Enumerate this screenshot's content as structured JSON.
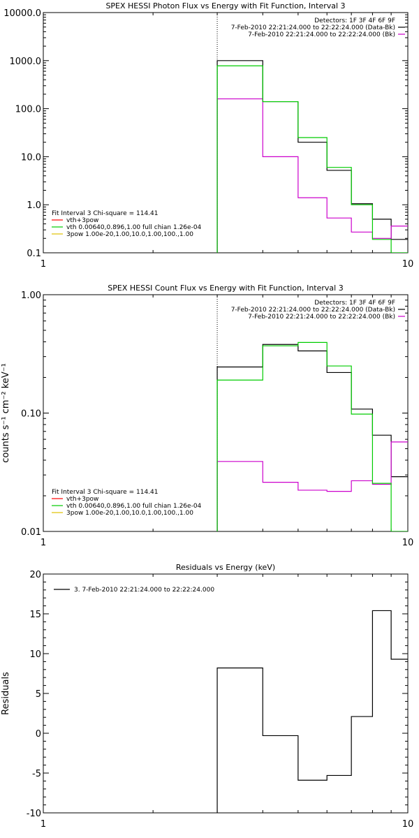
{
  "chart_data": [
    {
      "type": "line",
      "title": "SPEX HESSI Photon Flux vs Energy with Fit Function, Interval 3",
      "xscale": "log",
      "yscale": "log",
      "xlim": [
        1,
        10
      ],
      "ylim": [
        0.1,
        10000
      ],
      "xticks": [
        1,
        10
      ],
      "xtick_labels": [
        "1",
        "10"
      ],
      "yticks": [
        0.1,
        1,
        10,
        100,
        1000,
        10000
      ],
      "ytick_labels": [
        "0.1",
        "1.0",
        "10.0",
        "100.0",
        "1000.0",
        "10000.0"
      ],
      "ylabel": "",
      "vline": 3,
      "legend_topright": [
        {
          "text": "Detectors: 1F 3F 4F 6F 9F",
          "color": ""
        },
        {
          "text": "7-Feb-2010 22:21:24.000 to 22:22:24.000 (Data-Bk)",
          "color": "#000000"
        },
        {
          "text": "7-Feb-2010 22:21:24.000 to 22:22:24.000 (Bk)",
          "color": "#cc00cc"
        }
      ],
      "legend_bottomleft": [
        {
          "text": "Fit Interval 3   Chi-square = 114.41",
          "color": ""
        },
        {
          "text": "vth+3pow",
          "color": "#ff0000"
        },
        {
          "text": "vth 0.00640,0.896,1.00  full chian 1.26e-04",
          "color": "#00cc00"
        },
        {
          "text": "3pow 1.00e-20,1.00,10.0,1.00,100.,1.00",
          "color": "#e0c000"
        }
      ],
      "bin_edges": [
        3,
        4,
        5,
        6,
        7,
        8,
        9,
        10
      ],
      "series": [
        {
          "name": "Data-Bk",
          "color": "#000000",
          "values": [
            1000,
            140,
            20,
            5.2,
            1.05,
            0.5,
            0.19
          ]
        },
        {
          "name": "Bk",
          "color": "#cc00cc",
          "values": [
            160,
            10,
            1.4,
            0.53,
            0.27,
            0.2,
            0.36
          ]
        },
        {
          "name": "vth+3pow",
          "color": "#00cc00",
          "values": [
            780,
            140,
            25,
            6,
            1.0,
            0.19,
            0.1
          ]
        }
      ]
    },
    {
      "type": "line",
      "title": "SPEX HESSI Count Flux vs Energy with Fit Function, Interval 3",
      "xscale": "log",
      "yscale": "log",
      "xlim": [
        1,
        10
      ],
      "ylim": [
        0.01,
        1.0
      ],
      "xticks": [
        1,
        10
      ],
      "xtick_labels": [
        "1",
        "10"
      ],
      "yticks": [
        0.01,
        0.1,
        1.0
      ],
      "ytick_labels": [
        "0.01",
        "0.10",
        "1.00"
      ],
      "ylabel": "counts s⁻¹ cm⁻² keV⁻¹",
      "vline": 3,
      "legend_topright": [
        {
          "text": "Detectors: 1F 3F 4F 6F 9F",
          "color": ""
        },
        {
          "text": "7-Feb-2010 22:21:24.000 to 22:22:24.000 (Data-Bk)",
          "color": "#000000"
        },
        {
          "text": "7-Feb-2010 22:21:24.000 to 22:22:24.000 (Bk)",
          "color": "#cc00cc"
        }
      ],
      "legend_bottomleft": [
        {
          "text": "Fit Interval 3   Chi-square = 114.41",
          "color": ""
        },
        {
          "text": "vth+3pow",
          "color": "#ff0000"
        },
        {
          "text": "vth 0.00640,0.896,1.00  full chian 1.26e-04",
          "color": "#00cc00"
        },
        {
          "text": "3pow 1.00e-20,1.00,10.0,1.00,100.,1.00",
          "color": "#e0c000"
        }
      ],
      "bin_edges": [
        3,
        4,
        5,
        6,
        7,
        8,
        9,
        10
      ],
      "series": [
        {
          "name": "Data-Bk",
          "color": "#000000",
          "values": [
            0.245,
            0.38,
            0.335,
            0.22,
            0.108,
            0.065,
            0.029
          ]
        },
        {
          "name": "Bk",
          "color": "#cc00cc",
          "values": [
            0.039,
            0.026,
            0.0223,
            0.0218,
            0.0268,
            0.025,
            0.057
          ]
        },
        {
          "name": "vth+3pow",
          "color": "#00cc00",
          "values": [
            0.19,
            0.37,
            0.395,
            0.25,
            0.098,
            0.0255,
            0.0095
          ]
        }
      ]
    },
    {
      "type": "line",
      "title": "Residuals vs Energy (keV)",
      "xscale": "log",
      "yscale": "linear",
      "xlim": [
        1,
        10
      ],
      "ylim": [
        -10,
        20
      ],
      "xticks": [
        1,
        10
      ],
      "xtick_labels": [
        "1",
        "10"
      ],
      "yticks": [
        -10,
        -5,
        0,
        5,
        10,
        15,
        20
      ],
      "ytick_labels": [
        "-10",
        "-5",
        "0",
        "5",
        "10",
        "15",
        "20"
      ],
      "ylabel": "Residuals",
      "legend_topleft": [
        {
          "text": "3.  7-Feb-2010 22:21:24.000 to 22:22:24.000",
          "color": "#000000"
        }
      ],
      "bin_edges": [
        3,
        4,
        5,
        6,
        7,
        8,
        9,
        10
      ],
      "series": [
        {
          "name": "3.  7-Feb-2010 22:21:24.000 to 22:22:24.000",
          "color": "#000000",
          "values": [
            8.2,
            -0.3,
            -5.9,
            -5.3,
            2.1,
            15.4,
            9.3
          ]
        }
      ]
    }
  ]
}
